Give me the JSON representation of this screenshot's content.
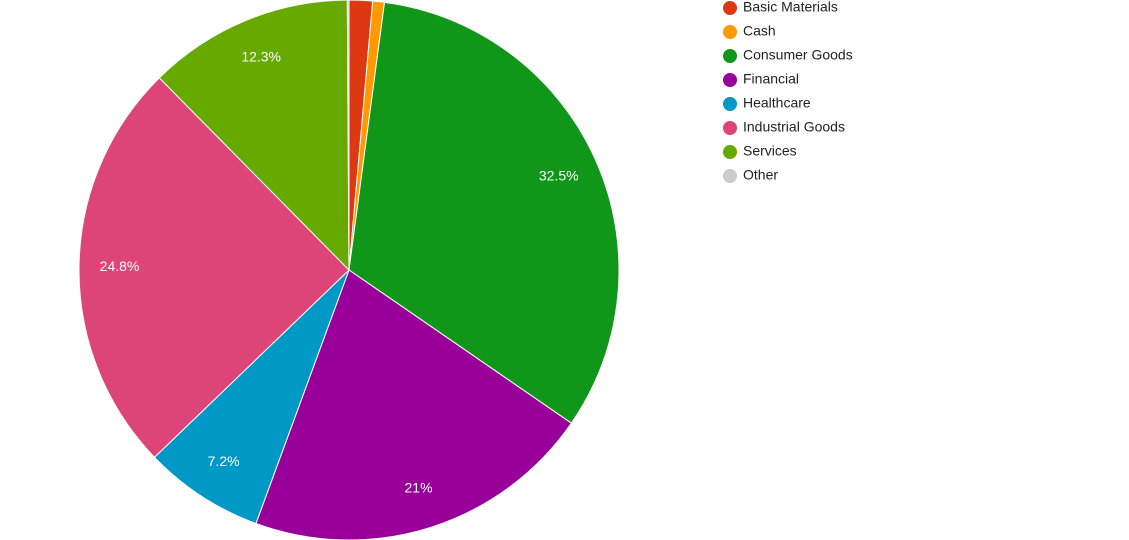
{
  "chart_data": {
    "type": "pie",
    "categories": [
      "Basic Materials",
      "Cash",
      "Consumer Goods",
      "Financial",
      "Healthcare",
      "Industrial Goods",
      "Services",
      "Other"
    ],
    "values": [
      1.4,
      0.7,
      32.5,
      21,
      7.2,
      24.8,
      12.3,
      0.1
    ],
    "value_labels": [
      null,
      null,
      "32.5%",
      "21%",
      "7.2%",
      "24.8%",
      "12.3%",
      null
    ],
    "colors": [
      "#dc3912",
      "#ff9900",
      "#109618",
      "#990099",
      "#0099c6",
      "#dd4477",
      "#66aa00",
      "#cccccc"
    ],
    "legend": "right"
  }
}
